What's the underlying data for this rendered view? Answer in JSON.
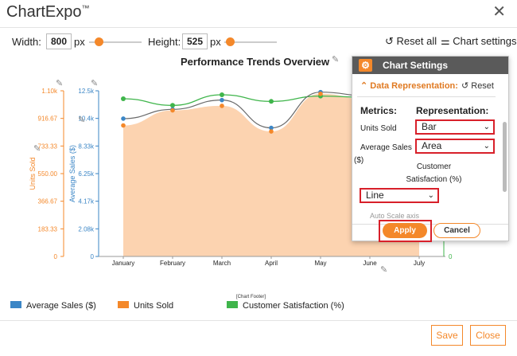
{
  "app": {
    "name": "ChartExpo",
    "trademark": "™"
  },
  "toolbar": {
    "width_label": "Width:",
    "width_value": "800",
    "width_unit": "px",
    "height_label": "Height:",
    "height_value": "525",
    "height_unit": "px",
    "reset_all_label": "Reset all",
    "chart_settings_label": "Chart settings"
  },
  "chart": {
    "title": "Performance Trends Overview",
    "footer_label": "[Chart Footer]"
  },
  "chart_data": {
    "type": "bar",
    "title": "Performance Trends Overview",
    "categories": [
      "January",
      "February",
      "March",
      "April",
      "May",
      "June",
      "July"
    ],
    "units_axis": {
      "label": "Units Sold",
      "ticks": [
        "0",
        "183.33",
        "366.67",
        "550.00",
        "733.33",
        "916.67",
        "1.10k"
      ],
      "range": [
        0,
        1100
      ]
    },
    "sales_axis": {
      "label": "Average Sales ($)",
      "ticks": [
        "0",
        "2.08k",
        "4.17k",
        "6.25k",
        "8.33k",
        "10.4k",
        "12.5k"
      ],
      "range": [
        0,
        12500
      ]
    },
    "satisfaction_axis": {
      "ticks": [
        "0"
      ]
    },
    "series": [
      {
        "name": "Units Sold",
        "color": "#f4882a",
        "values": [
          870,
          970,
          1000,
          830,
          1080,
          1040,
          1010
        ]
      },
      {
        "name": "Average Sales ($)",
        "color": "#3b86c6",
        "values": [
          10400,
          11100,
          11800,
          9700,
          12400,
          12100,
          11800
        ]
      },
      {
        "name": "Customer Satisfaction (%)",
        "color": "#3fb54b",
        "values": [
          11900,
          11400,
          12200,
          11700,
          12100,
          12000,
          12300
        ]
      }
    ],
    "area_color": "#fcd3b0"
  },
  "settings": {
    "header": "Chart Settings",
    "section": "Data Representation:",
    "reset": "Reset",
    "metrics_label": "Metrics:",
    "representation_label": "Representation:",
    "rows": [
      {
        "metric": "Units Sold",
        "value": "Bar"
      },
      {
        "metric_line1": "Average Sales",
        "metric_line2": "($)",
        "value": "Area"
      },
      {
        "metric_line1": "Customer",
        "metric_line2": "Satisfaction (%)",
        "value": "Line"
      }
    ],
    "faded_row": "Auto Scale axis",
    "apply": "Apply",
    "cancel": "Cancel"
  },
  "legend": [
    {
      "label": "Average Sales ($)",
      "color": "#3b86c6"
    },
    {
      "label": "Units Sold",
      "color": "#f4882a"
    },
    {
      "label": "Customer Satisfaction (%)",
      "color": "#3fb54b"
    }
  ],
  "footer": {
    "save": "Save",
    "close": "Close"
  }
}
